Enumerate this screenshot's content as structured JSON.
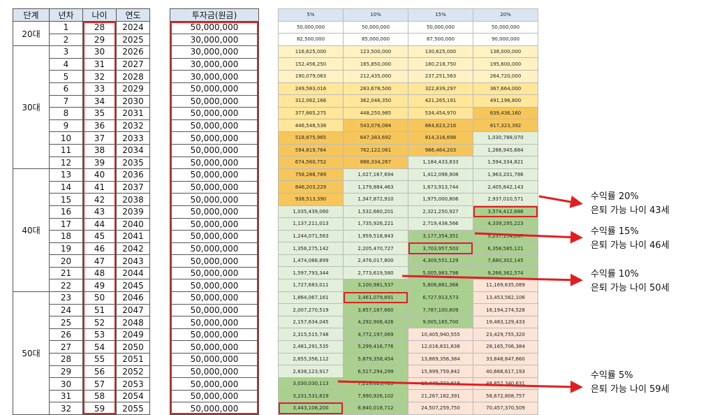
{
  "left_table": {
    "headers": [
      "단계",
      "년차",
      "나이",
      "연도"
    ],
    "groups": [
      {
        "stage": "20대",
        "rows": [
          [
            "1",
            "28",
            "2024"
          ],
          [
            "2",
            "29",
            "2025"
          ]
        ]
      },
      {
        "stage": "30대",
        "rows": [
          [
            "3",
            "30",
            "2026"
          ],
          [
            "4",
            "31",
            "2027"
          ],
          [
            "5",
            "32",
            "2028"
          ],
          [
            "6",
            "33",
            "2029"
          ],
          [
            "7",
            "34",
            "2030"
          ],
          [
            "8",
            "35",
            "2031"
          ],
          [
            "9",
            "36",
            "2032"
          ],
          [
            "10",
            "37",
            "2033"
          ],
          [
            "11",
            "38",
            "2034"
          ],
          [
            "12",
            "39",
            "2035"
          ]
        ]
      },
      {
        "stage": "40대",
        "rows": [
          [
            "13",
            "40",
            "2036"
          ],
          [
            "14",
            "41",
            "2037"
          ],
          [
            "15",
            "42",
            "2038"
          ],
          [
            "16",
            "43",
            "2039"
          ],
          [
            "17",
            "44",
            "2040"
          ],
          [
            "18",
            "45",
            "2041"
          ],
          [
            "19",
            "46",
            "2042"
          ],
          [
            "20",
            "47",
            "2043"
          ],
          [
            "21",
            "48",
            "2044"
          ],
          [
            "22",
            "49",
            "2045"
          ]
        ]
      },
      {
        "stage": "50대",
        "rows": [
          [
            "23",
            "50",
            "2046"
          ],
          [
            "24",
            "51",
            "2047"
          ],
          [
            "25",
            "52",
            "2048"
          ],
          [
            "26",
            "53",
            "2049"
          ],
          [
            "27",
            "54",
            "2050"
          ],
          [
            "28",
            "55",
            "2051"
          ],
          [
            "29",
            "56",
            "2052"
          ],
          [
            "30",
            "57",
            "2053"
          ],
          [
            "31",
            "58",
            "2054"
          ],
          [
            "32",
            "59",
            "2055"
          ]
        ]
      }
    ]
  },
  "investment_table": {
    "header": "투자금(원금)",
    "values": [
      "50,000,000",
      "30,000,000",
      "30,000,000",
      "30,000,000",
      "30,000,000",
      "50,000,000",
      "50,000,000",
      "50,000,000",
      "50,000,000",
      "50,000,000",
      "50,000,000",
      "50,000,000",
      "50,000,000",
      "50,000,000",
      "50,000,000",
      "50,000,000",
      "50,000,000",
      "50,000,000",
      "50,000,000",
      "50,000,000",
      "50,000,000",
      "50,000,000",
      "50,000,000",
      "50,000,000",
      "50,000,000",
      "50,000,000",
      "50,000,000",
      "50,000,000",
      "50,000,000",
      "50,000,000",
      "50,000,000",
      "50,000,000"
    ]
  },
  "returns_table": {
    "headers": [
      "5%",
      "10%",
      "15%",
      "20%"
    ],
    "colors": {
      "white": "#ffffff",
      "yellow_light": "#fff2c2",
      "yellow": "#ffe699",
      "orange": "#f6c65a",
      "green_light": "#e2efda",
      "green": "#a9d08e",
      "peach": "#fce4d6"
    },
    "rows": [
      {
        "v": [
          "50,000,000",
          "50,000,000",
          "50,000,000",
          "50,000,000"
        ],
        "c": [
          "white",
          "white",
          "white",
          "white"
        ]
      },
      {
        "v": [
          "82,500,000",
          "85,000,000",
          "87,500,000",
          "90,000,000"
        ],
        "c": [
          "white",
          "white",
          "white",
          "white"
        ]
      },
      {
        "v": [
          "116,625,000",
          "123,500,000",
          "130,625,000",
          "138,000,000"
        ],
        "c": [
          "yellow_light",
          "yellow_light",
          "yellow_light",
          "yellow_light"
        ]
      },
      {
        "v": [
          "152,456,250",
          "165,850,000",
          "180,218,750",
          "195,600,000"
        ],
        "c": [
          "yellow_light",
          "yellow_light",
          "yellow_light",
          "yellow_light"
        ]
      },
      {
        "v": [
          "190,079,063",
          "212,435,000",
          "237,251,563",
          "264,720,000"
        ],
        "c": [
          "yellow_light",
          "yellow_light",
          "yellow_light",
          "yellow_light"
        ]
      },
      {
        "v": [
          "249,583,016",
          "283,678,500",
          "322,839,297",
          "367,664,000"
        ],
        "c": [
          "yellow",
          "yellow",
          "yellow",
          "yellow"
        ]
      },
      {
        "v": [
          "312,062,166",
          "362,046,350",
          "421,265,191",
          "491,196,800"
        ],
        "c": [
          "yellow",
          "yellow",
          "yellow",
          "yellow"
        ]
      },
      {
        "v": [
          "377,665,275",
          "448,250,985",
          "534,454,970",
          "639,436,160"
        ],
        "c": [
          "yellow",
          "yellow",
          "yellow",
          "orange"
        ]
      },
      {
        "v": [
          "446,548,538",
          "543,076,084",
          "664,623,216",
          "817,323,392"
        ],
        "c": [
          "yellow",
          "orange",
          "orange",
          "orange"
        ]
      },
      {
        "v": [
          "518,875,965",
          "647,383,692",
          "814,316,698",
          "1,030,788,070"
        ],
        "c": [
          "orange",
          "orange",
          "orange",
          "green_light"
        ]
      },
      {
        "v": [
          "594,819,764",
          "762,122,061",
          "986,464,203",
          "1,286,945,684"
        ],
        "c": [
          "orange",
          "orange",
          "orange",
          "green_light"
        ]
      },
      {
        "v": [
          "674,560,752",
          "888,334,267",
          "1,184,433,833",
          "1,594,334,821"
        ],
        "c": [
          "orange",
          "orange",
          "green_light",
          "green_light"
        ]
      },
      {
        "v": [
          "758,288,789",
          "1,027,167,694",
          "1,412,098,908",
          "1,963,201,786"
        ],
        "c": [
          "orange",
          "green_light",
          "green_light",
          "green_light"
        ]
      },
      {
        "v": [
          "846,203,229",
          "1,179,884,463",
          "1,673,913,744",
          "2,405,842,143"
        ],
        "c": [
          "orange",
          "green_light",
          "green_light",
          "green_light"
        ]
      },
      {
        "v": [
          "938,513,390",
          "1,347,872,910",
          "1,975,000,806",
          "2,937,010,571"
        ],
        "c": [
          "orange",
          "green_light",
          "green_light",
          "green_light"
        ]
      },
      {
        "v": [
          "1,035,439,060",
          "1,532,660,201",
          "2,321,250,927",
          "3,574,412,686"
        ],
        "c": [
          "green_light",
          "green_light",
          "green_light",
          "green"
        ]
      },
      {
        "v": [
          "1,137,211,013",
          "1,735,926,221",
          "2,719,438,566",
          "4,339,295,223"
        ],
        "c": [
          "green_light",
          "green_light",
          "green_light",
          "green"
        ]
      },
      {
        "v": [
          "1,244,071,563",
          "1,959,518,843",
          "3,177,354,351",
          "5,257,154,267"
        ],
        "c": [
          "green_light",
          "green_light",
          "green",
          "green"
        ]
      },
      {
        "v": [
          "1,356,275,142",
          "2,205,470,727",
          "3,703,957,503",
          "6,358,585,121"
        ],
        "c": [
          "green_light",
          "green_light",
          "green",
          "green"
        ]
      },
      {
        "v": [
          "1,474,088,899",
          "2,476,017,800",
          "4,309,551,129",
          "7,680,302,145"
        ],
        "c": [
          "green_light",
          "green_light",
          "green",
          "green"
        ]
      },
      {
        "v": [
          "1,597,793,344",
          "2,773,619,580",
          "5,005,983,798",
          "9,266,362,574"
        ],
        "c": [
          "green_light",
          "green_light",
          "green",
          "green"
        ]
      },
      {
        "v": [
          "1,727,683,011",
          "3,100,981,537",
          "5,806,881,368",
          "11,169,635,089"
        ],
        "c": [
          "green_light",
          "green",
          "green",
          "peach"
        ]
      },
      {
        "v": [
          "1,864,067,161",
          "3,461,079,691",
          "6,727,913,573",
          "13,453,562,106"
        ],
        "c": [
          "green_light",
          "green",
          "green",
          "peach"
        ]
      },
      {
        "v": [
          "2,007,270,519",
          "3,857,187,660",
          "7,787,100,609",
          "16,194,274,528"
        ],
        "c": [
          "green_light",
          "green",
          "green",
          "peach"
        ]
      },
      {
        "v": [
          "2,157,634,045",
          "4,292,906,426",
          "9,005,165,700",
          "19,483,129,433"
        ],
        "c": [
          "green_light",
          "green",
          "green",
          "peach"
        ]
      },
      {
        "v": [
          "2,315,515,748",
          "4,772,197,069",
          "10,405,940,555",
          "23,429,755,320"
        ],
        "c": [
          "green_light",
          "green",
          "peach",
          "peach"
        ]
      },
      {
        "v": [
          "2,481,291,535",
          "5,299,416,776",
          "12,016,831,638",
          "28,165,706,384"
        ],
        "c": [
          "green_light",
          "green",
          "peach",
          "peach"
        ]
      },
      {
        "v": [
          "2,655,356,112",
          "5,879,358,454",
          "13,869,356,384",
          "33,848,847,660"
        ],
        "c": [
          "green_light",
          "green",
          "peach",
          "peach"
        ]
      },
      {
        "v": [
          "2,838,123,917",
          "6,517,294,299",
          "15,999,759,842",
          "40,668,617,193"
        ],
        "c": [
          "green_light",
          "green",
          "peach",
          "peach"
        ]
      },
      {
        "v": [
          "3,030,030,113",
          "7,219,023,729",
          "18,449,723,818",
          "48,852,340,631"
        ],
        "c": [
          "green",
          "green",
          "peach",
          "peach"
        ]
      },
      {
        "v": [
          "3,231,531,619",
          "7,990,926,102",
          "21,267,182,391",
          "58,672,808,757"
        ],
        "c": [
          "green",
          "green",
          "peach",
          "peach"
        ]
      },
      {
        "v": [
          "3,443,108,200",
          "8,840,018,712",
          "24,507,259,750",
          "70,457,370,509"
        ],
        "c": [
          "green",
          "green",
          "peach",
          "peach"
        ]
      }
    ],
    "highlights": [
      [
        15,
        3
      ],
      [
        18,
        2
      ],
      [
        22,
        1
      ],
      [
        31,
        0
      ]
    ]
  },
  "annotations": [
    {
      "line1": "수익률 20%",
      "line2": "은퇴 가능 나이 43세"
    },
    {
      "line1": "수익률 15%",
      "line2": "은퇴 가능 나이 46세"
    },
    {
      "line1": "수익률 10%",
      "line2": "은퇴 가능 나이 50세"
    },
    {
      "line1": "수익률 5%",
      "line2": "은퇴 가능 나이 59세"
    }
  ],
  "accent_color": "#e02020"
}
